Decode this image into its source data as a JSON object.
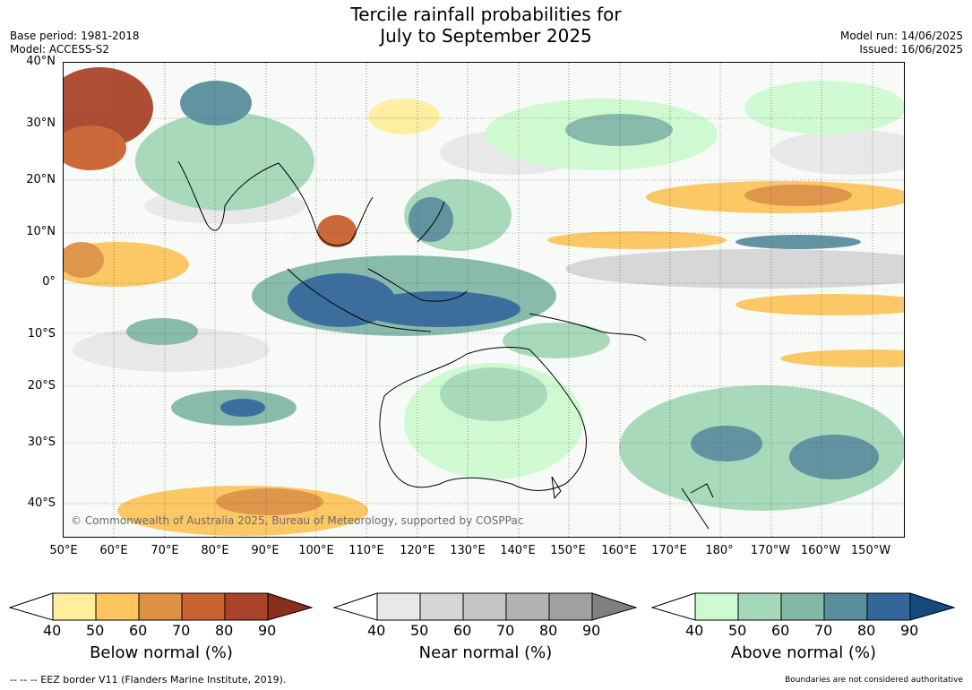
{
  "title_line1": "Tercile rainfall probabilities for",
  "title_line2": "July to September 2025",
  "meta_left": [
    "Base period: 1981-2018",
    "Model: ACCESS-S2"
  ],
  "meta_right": [
    "Model run: 14/06/2025",
    "Issued: 16/06/2025"
  ],
  "lat_labels": [
    "40°N",
    "30°N",
    "20°N",
    "10°N",
    "0°",
    "10°S",
    "20°S",
    "30°S",
    "40°S"
  ],
  "lon_labels": [
    "50°E",
    "60°E",
    "70°E",
    "80°E",
    "90°E",
    "100°E",
    "110°E",
    "120°E",
    "130°E",
    "140°E",
    "150°E",
    "160°E",
    "170°E",
    "180°",
    "170°W",
    "160°W",
    "150°W"
  ],
  "copyright": "© Commonwealth of Australia 2025, Bureau of Meteorology, supported by COSPPac",
  "colorbars": [
    {
      "title": "Below normal (%)",
      "ticks": [
        "40",
        "50",
        "60",
        "70",
        "80",
        "90"
      ],
      "colors": [
        "#ffee9e",
        "#fdc55e",
        "#dd9144",
        "#c96230",
        "#a9442a",
        "#8a2e1f"
      ]
    },
    {
      "title": "Near normal (%)",
      "ticks": [
        "40",
        "50",
        "60",
        "70",
        "80",
        "90"
      ],
      "colors": [
        "#e8e8e8",
        "#d6d6d6",
        "#c4c4c4",
        "#b2b2b2",
        "#a0a0a0",
        "#808080"
      ]
    },
    {
      "title": "Above normal (%)",
      "ticks": [
        "40",
        "50",
        "60",
        "70",
        "80",
        "90"
      ],
      "colors": [
        "#cdfad0",
        "#a5d8b8",
        "#83b8a8",
        "#5a8e9c",
        "#336799",
        "#144a7e"
      ]
    }
  ],
  "footer_left": "-- -- -- EEZ border V11 (Flanders Marine Institute, 2019).",
  "footer_right": "Boundaries are not considered authoritative"
}
